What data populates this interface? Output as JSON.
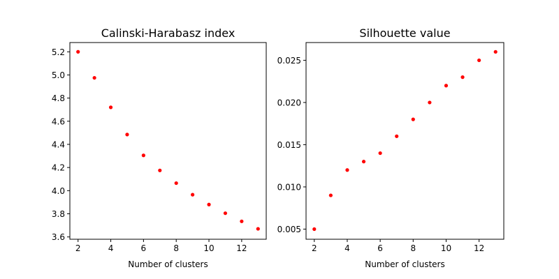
{
  "chart_data": [
    {
      "type": "scatter",
      "title": "Calinski-Harabasz index",
      "xlabel": "Number of clusters",
      "ylabel": "",
      "xlim": [
        1.5,
        13.5
      ],
      "ylim": [
        3.58,
        5.28
      ],
      "xticks": [
        "2",
        "4",
        "6",
        "8",
        "10",
        "12"
      ],
      "yticks": [
        "3.6",
        "3.8",
        "4.0",
        "4.2",
        "4.4",
        "4.6",
        "4.8",
        "5.0",
        "5.2"
      ],
      "marker_color": "#ff0000",
      "grid": false,
      "x": [
        2,
        3,
        4,
        5,
        6,
        7,
        8,
        9,
        10,
        11,
        12,
        13
      ],
      "y": [
        5.2,
        4.975,
        4.72,
        4.485,
        4.305,
        4.175,
        4.065,
        3.965,
        3.88,
        3.805,
        3.735,
        3.67
      ]
    },
    {
      "type": "scatter",
      "title": "Silhouette value",
      "xlabel": "Number of clusters",
      "ylabel": "",
      "xlim": [
        1.5,
        13.5
      ],
      "ylim": [
        0.0038,
        0.0271
      ],
      "xticks": [
        "2",
        "4",
        "6",
        "8",
        "10",
        "12"
      ],
      "yticks": [
        "0.005",
        "0.010",
        "0.015",
        "0.020",
        "0.025"
      ],
      "marker_color": "#ff0000",
      "grid": false,
      "x": [
        2,
        3,
        4,
        5,
        6,
        7,
        8,
        9,
        10,
        11,
        12,
        13
      ],
      "y": [
        0.005,
        0.009,
        0.012,
        0.013,
        0.014,
        0.016,
        0.018,
        0.02,
        0.022,
        0.023,
        0.025,
        0.026
      ]
    }
  ]
}
